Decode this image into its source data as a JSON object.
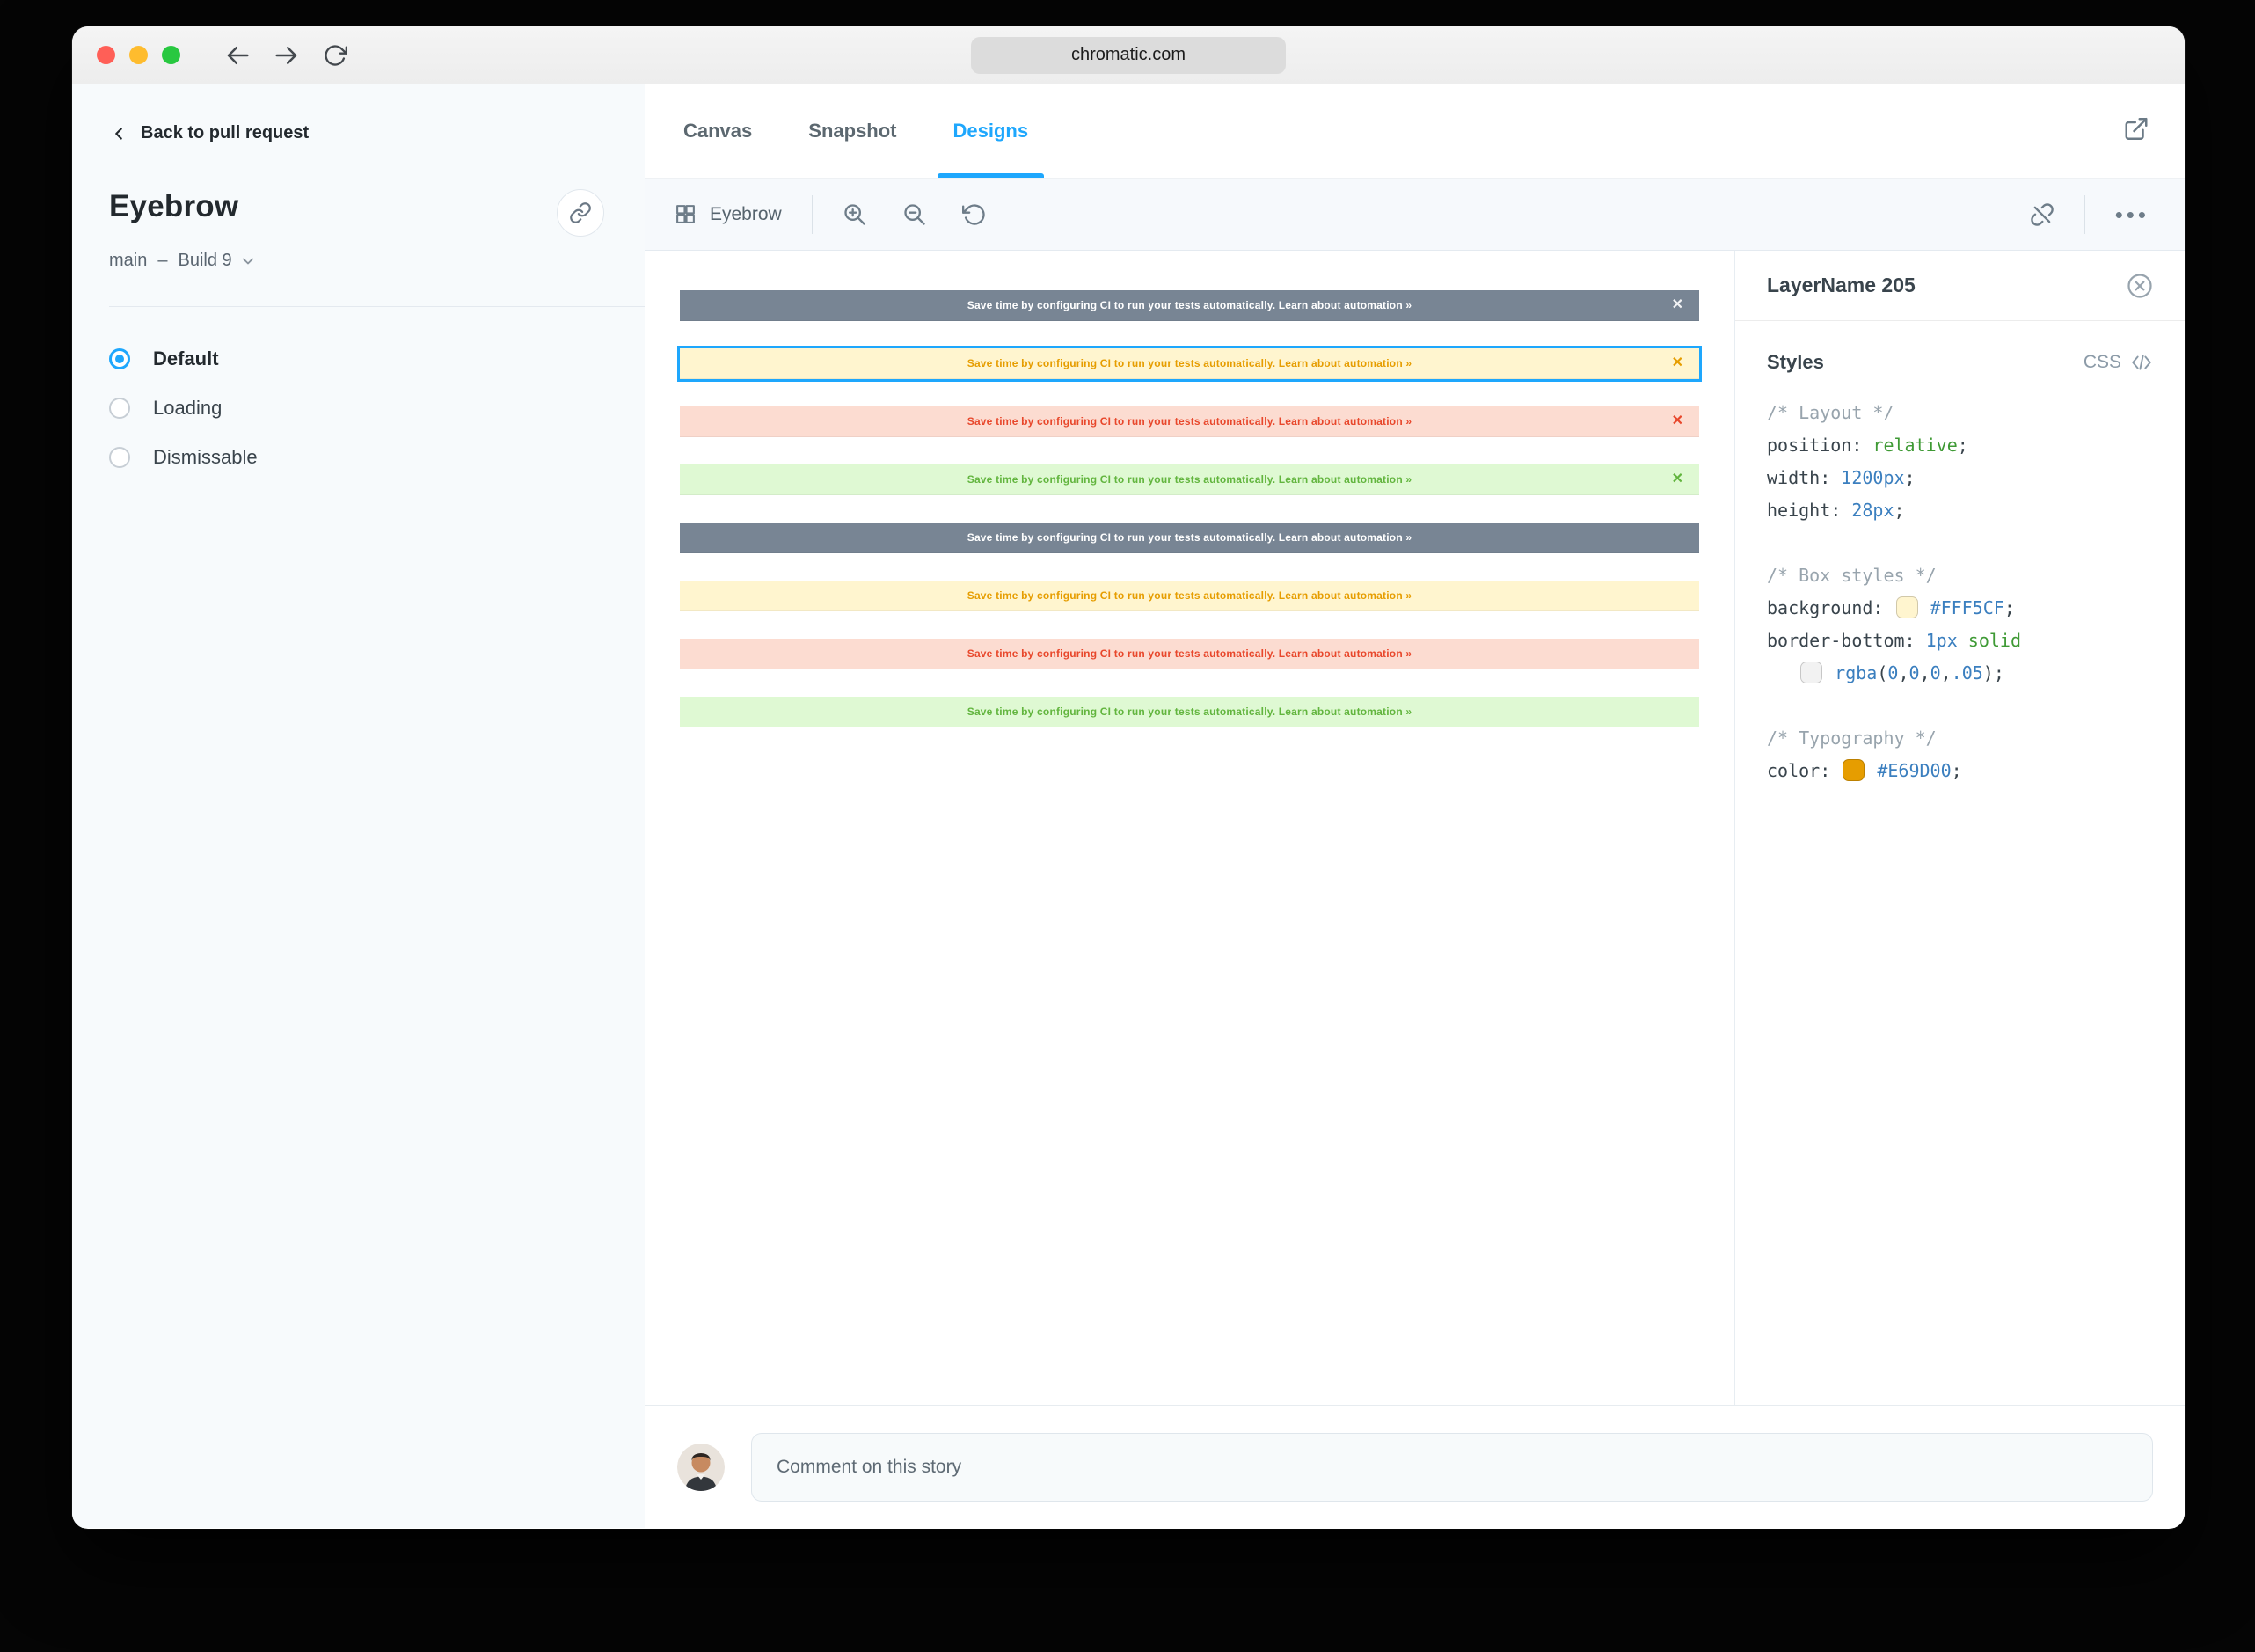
{
  "browser": {
    "url": "chromatic.com",
    "traffic_lights": [
      {
        "name": "close-button",
        "color": "#ff5f57"
      },
      {
        "name": "minimize-button",
        "color": "#febc2e"
      },
      {
        "name": "zoom-button",
        "color": "#28c840"
      }
    ]
  },
  "sidebar": {
    "back_label": "Back to pull request",
    "title": "Eyebrow",
    "branch": "main",
    "separator": "–",
    "build": "Build 9",
    "variants": [
      {
        "label": "Default",
        "selected": true
      },
      {
        "label": "Loading",
        "selected": false
      },
      {
        "label": "Dismissable",
        "selected": false
      }
    ]
  },
  "tabs": [
    {
      "label": "Canvas",
      "active": false
    },
    {
      "label": "Snapshot",
      "active": false
    },
    {
      "label": "Designs",
      "active": true
    }
  ],
  "toolbar": {
    "component_label": "Eyebrow"
  },
  "canvas": {
    "banner_text": "Save time by configuring CI to run your tests automatically. Learn about automation »",
    "close_glyph": "✕",
    "selection_color": "#1ea7fd",
    "variant_colors": {
      "slate": {
        "bg": "#788594",
        "fg": "#ffffff"
      },
      "yellow": {
        "bg": "#fff5cf",
        "fg": "#e69d00"
      },
      "red": {
        "bg": "#fcdcd1",
        "fg": "#e8472b"
      },
      "green": {
        "bg": "#dff9d3",
        "fg": "#62b53e"
      }
    },
    "banners": [
      {
        "variant": "slate",
        "dismissible": true,
        "selected": false
      },
      {
        "variant": "yellow",
        "dismissible": true,
        "selected": true
      },
      {
        "variant": "red",
        "dismissible": true,
        "selected": false
      },
      {
        "variant": "green",
        "dismissible": true,
        "selected": false
      },
      {
        "variant": "slate",
        "dismissible": false,
        "selected": false
      },
      {
        "variant": "yellow",
        "dismissible": false,
        "selected": false
      },
      {
        "variant": "red",
        "dismissible": false,
        "selected": false
      },
      {
        "variant": "green",
        "dismissible": false,
        "selected": false
      }
    ]
  },
  "styles_panel": {
    "layer_name": "LayerName 205",
    "section_title": "Styles",
    "css_toggle_label": "CSS",
    "code": [
      [
        {
          "t": "/* Layout */",
          "c": "comment"
        }
      ],
      [
        {
          "t": "position: ",
          "c": "plain"
        },
        {
          "t": "relative",
          "c": "keyword"
        },
        {
          "t": ";",
          "c": "plain"
        }
      ],
      [
        {
          "t": "width: ",
          "c": "plain"
        },
        {
          "t": "1200px",
          "c": "value"
        },
        {
          "t": ";",
          "c": "plain"
        }
      ],
      [
        {
          "t": "height: ",
          "c": "plain"
        },
        {
          "t": "28px",
          "c": "value"
        },
        {
          "t": ";",
          "c": "plain"
        }
      ],
      [],
      [
        {
          "t": "/* Box styles */",
          "c": "comment"
        }
      ],
      [
        {
          "t": "background: ",
          "c": "plain"
        },
        {
          "swatch": "#FFF5CF"
        },
        {
          "t": " #FFF5CF",
          "c": "value"
        },
        {
          "t": ";",
          "c": "plain"
        }
      ],
      [
        {
          "t": "border-bottom: ",
          "c": "plain"
        },
        {
          "t": "1px",
          "c": "value"
        },
        {
          "t": " ",
          "c": "plain"
        },
        {
          "t": "solid",
          "c": "keyword"
        }
      ],
      [
        {
          "t": "   ",
          "c": "plain"
        },
        {
          "swatch": "rgba(0,0,0,.05)"
        },
        {
          "t": " ",
          "c": "plain"
        },
        {
          "t": "rgba",
          "c": "value"
        },
        {
          "t": "(",
          "c": "plain"
        },
        {
          "t": "0",
          "c": "value"
        },
        {
          "t": ",",
          "c": "plain"
        },
        {
          "t": "0",
          "c": "value"
        },
        {
          "t": ",",
          "c": "plain"
        },
        {
          "t": "0",
          "c": "value"
        },
        {
          "t": ",",
          "c": "plain"
        },
        {
          "t": ".05",
          "c": "value"
        },
        {
          "t": ")",
          "c": "plain"
        },
        {
          "t": ";",
          "c": "plain"
        }
      ],
      [],
      [
        {
          "t": "/* Typography */",
          "c": "comment"
        }
      ],
      [
        {
          "t": "color: ",
          "c": "plain"
        },
        {
          "swatch": "#E69D00"
        },
        {
          "t": " #E69D00",
          "c": "value"
        },
        {
          "t": ";",
          "c": "plain"
        }
      ]
    ]
  },
  "comment": {
    "placeholder": "Comment on this story"
  }
}
